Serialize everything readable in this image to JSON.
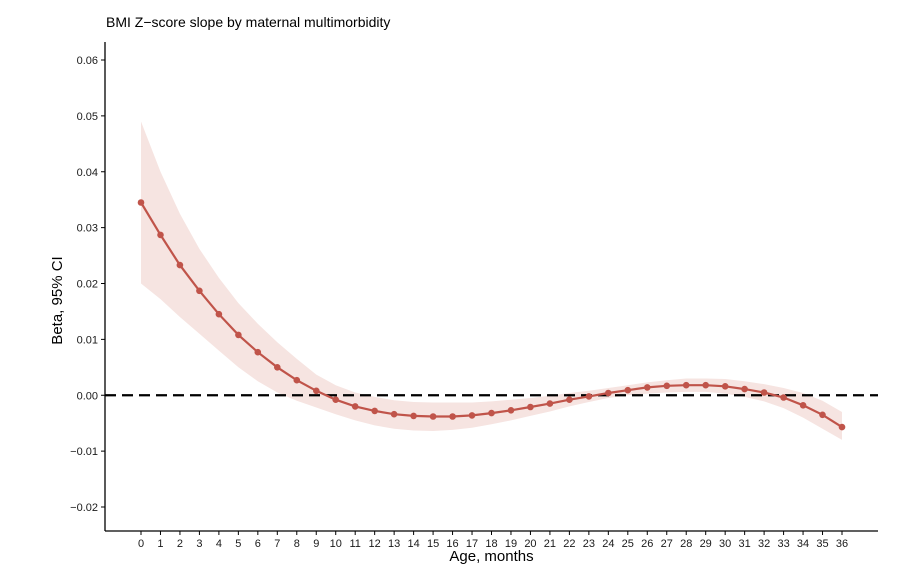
{
  "chart_data": {
    "type": "line",
    "title": "BMI Z−score slope by maternal multimorbidity",
    "xlabel": "Age, months",
    "ylabel": "Beta, 95% CI",
    "xlim": [
      0,
      36
    ],
    "ylim": [
      -0.02,
      0.06
    ],
    "x_ticks": [
      0,
      1,
      2,
      3,
      4,
      5,
      6,
      7,
      8,
      9,
      10,
      11,
      12,
      13,
      14,
      15,
      16,
      17,
      18,
      19,
      20,
      21,
      22,
      23,
      24,
      25,
      26,
      27,
      28,
      29,
      30,
      31,
      32,
      33,
      34,
      35,
      36
    ],
    "y_ticks": [
      -0.02,
      -0.01,
      0.0,
      0.01,
      0.02,
      0.03,
      0.04,
      0.05,
      0.06
    ],
    "y_tick_labels": [
      "−0.02",
      "−0.01",
      "0.00",
      "0.01",
      "0.02",
      "0.03",
      "0.04",
      "0.05",
      "0.06"
    ],
    "reference_line": 0.0,
    "grid": false,
    "series": [
      {
        "x": [
          0,
          1,
          2,
          3,
          4,
          5,
          6,
          7,
          8,
          9,
          10,
          11,
          12,
          13,
          14,
          15,
          16,
          17,
          18,
          19,
          20,
          21,
          22,
          23,
          24,
          25,
          26,
          27,
          28,
          29,
          30,
          31,
          32,
          33,
          34,
          35,
          36
        ],
        "y": [
          0.0345,
          0.0287,
          0.0233,
          0.0187,
          0.0145,
          0.0108,
          0.0077,
          0.005,
          0.0027,
          0.0008,
          -0.0008,
          -0.002,
          -0.0028,
          -0.0034,
          -0.0037,
          -0.0038,
          -0.0038,
          -0.0036,
          -0.0032,
          -0.0027,
          -0.0021,
          -0.0015,
          -0.0008,
          -0.0002,
          0.0004,
          0.0009,
          0.0014,
          0.0017,
          0.0018,
          0.0018,
          0.0016,
          0.0011,
          0.0005,
          -0.0004,
          -0.0018,
          -0.0035,
          -0.0057
        ],
        "ci_lower": [
          0.02,
          0.0172,
          0.014,
          0.011,
          0.008,
          0.005,
          0.0025,
          0.0005,
          -0.001,
          -0.0022,
          -0.0034,
          -0.0045,
          -0.0054,
          -0.006,
          -0.0063,
          -0.0064,
          -0.0062,
          -0.0058,
          -0.0052,
          -0.0045,
          -0.0037,
          -0.0029,
          -0.002,
          -0.0012,
          -0.0005,
          0.0,
          0.0003,
          0.0005,
          0.0006,
          0.0006,
          0.0003,
          -0.0003,
          -0.0011,
          -0.0023,
          -0.004,
          -0.006,
          -0.008
        ],
        "ci_upper": [
          0.049,
          0.04,
          0.0325,
          0.0262,
          0.021,
          0.0165,
          0.0128,
          0.0095,
          0.0065,
          0.0037,
          0.0018,
          0.0005,
          -0.0003,
          -0.0009,
          -0.0012,
          -0.0013,
          -0.0013,
          -0.0013,
          -0.0011,
          -0.0008,
          -0.0005,
          -0.0001,
          0.0004,
          0.0008,
          0.0013,
          0.0018,
          0.0023,
          0.0027,
          0.003,
          0.003,
          0.0029,
          0.0025,
          0.002,
          0.0013,
          0.0004,
          -0.001,
          -0.003
        ]
      }
    ],
    "colors": {
      "line": "#c0544a",
      "ribbon": "#f6e4e1",
      "reference": "#000000"
    }
  }
}
